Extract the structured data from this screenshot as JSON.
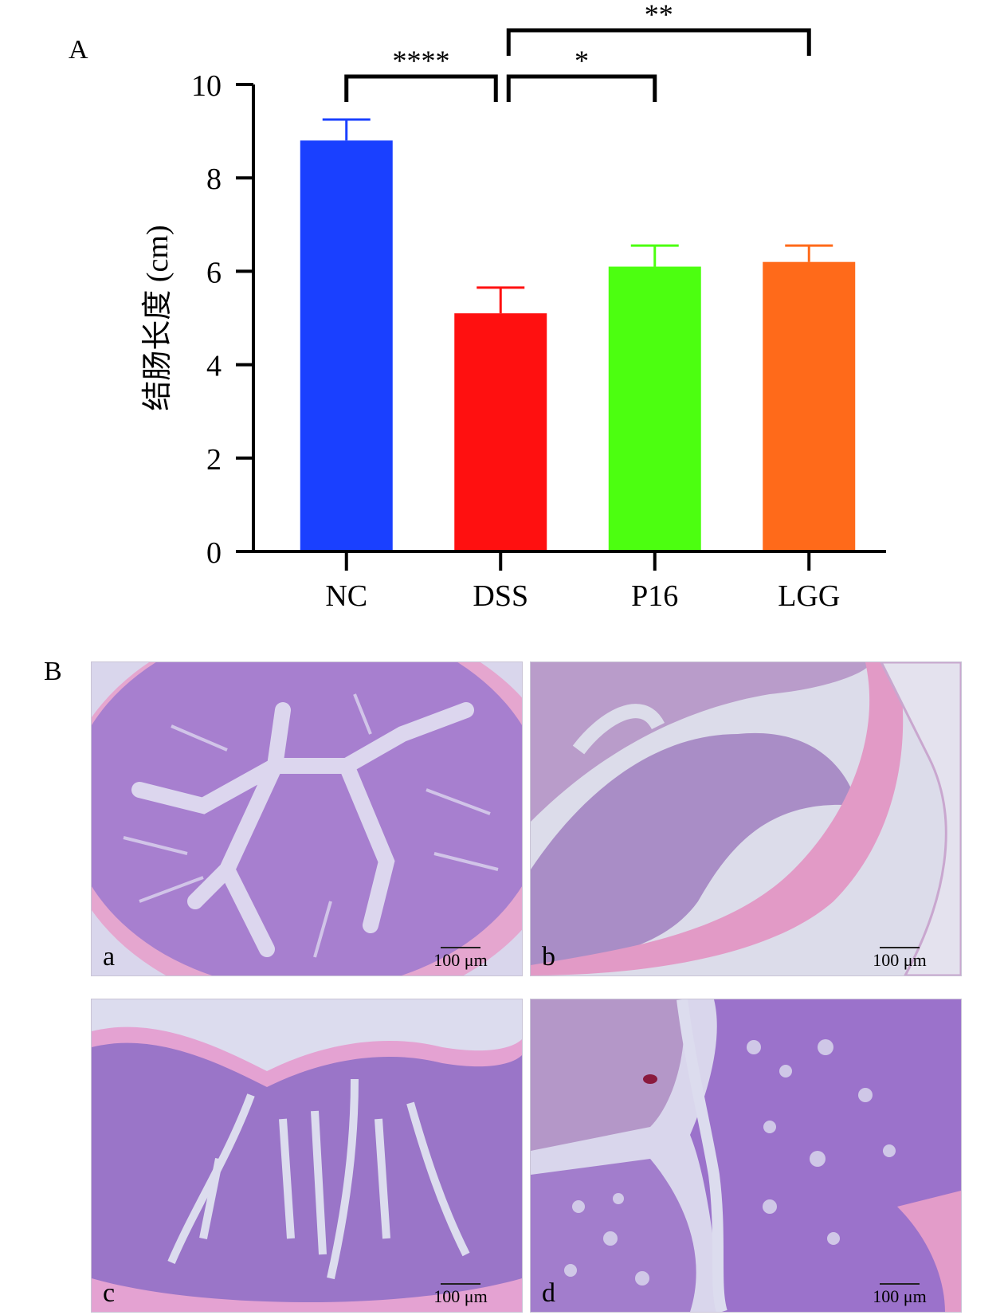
{
  "panel_labels": {
    "top": "A",
    "bottom": "B"
  },
  "chart_data": {
    "type": "bar",
    "categories": [
      "NC",
      "DSS",
      "P16",
      "LGG"
    ],
    "values": [
      8.8,
      5.1,
      6.1,
      6.2
    ],
    "errors": [
      0.45,
      0.55,
      0.45,
      0.35
    ],
    "colors": [
      "#1a40ff",
      "#ff1010",
      "#4cff10",
      "#ff6a1a"
    ],
    "ylabel": "结肠长度 (cm)",
    "ylim": [
      0,
      10
    ],
    "yticks": [
      0,
      2,
      4,
      6,
      8,
      10
    ],
    "significance": [
      {
        "from": "NC",
        "to": "DSS",
        "label": "****"
      },
      {
        "from": "DSS",
        "to": "P16",
        "label": "*"
      },
      {
        "from": "DSS",
        "to": "LGG",
        "label": "**"
      }
    ]
  },
  "micrographs": [
    {
      "letter": "a",
      "scale": "100 μm"
    },
    {
      "letter": "b",
      "scale": "100 μm"
    },
    {
      "letter": "c",
      "scale": "100 μm"
    },
    {
      "letter": "d",
      "scale": "100 μm"
    }
  ]
}
